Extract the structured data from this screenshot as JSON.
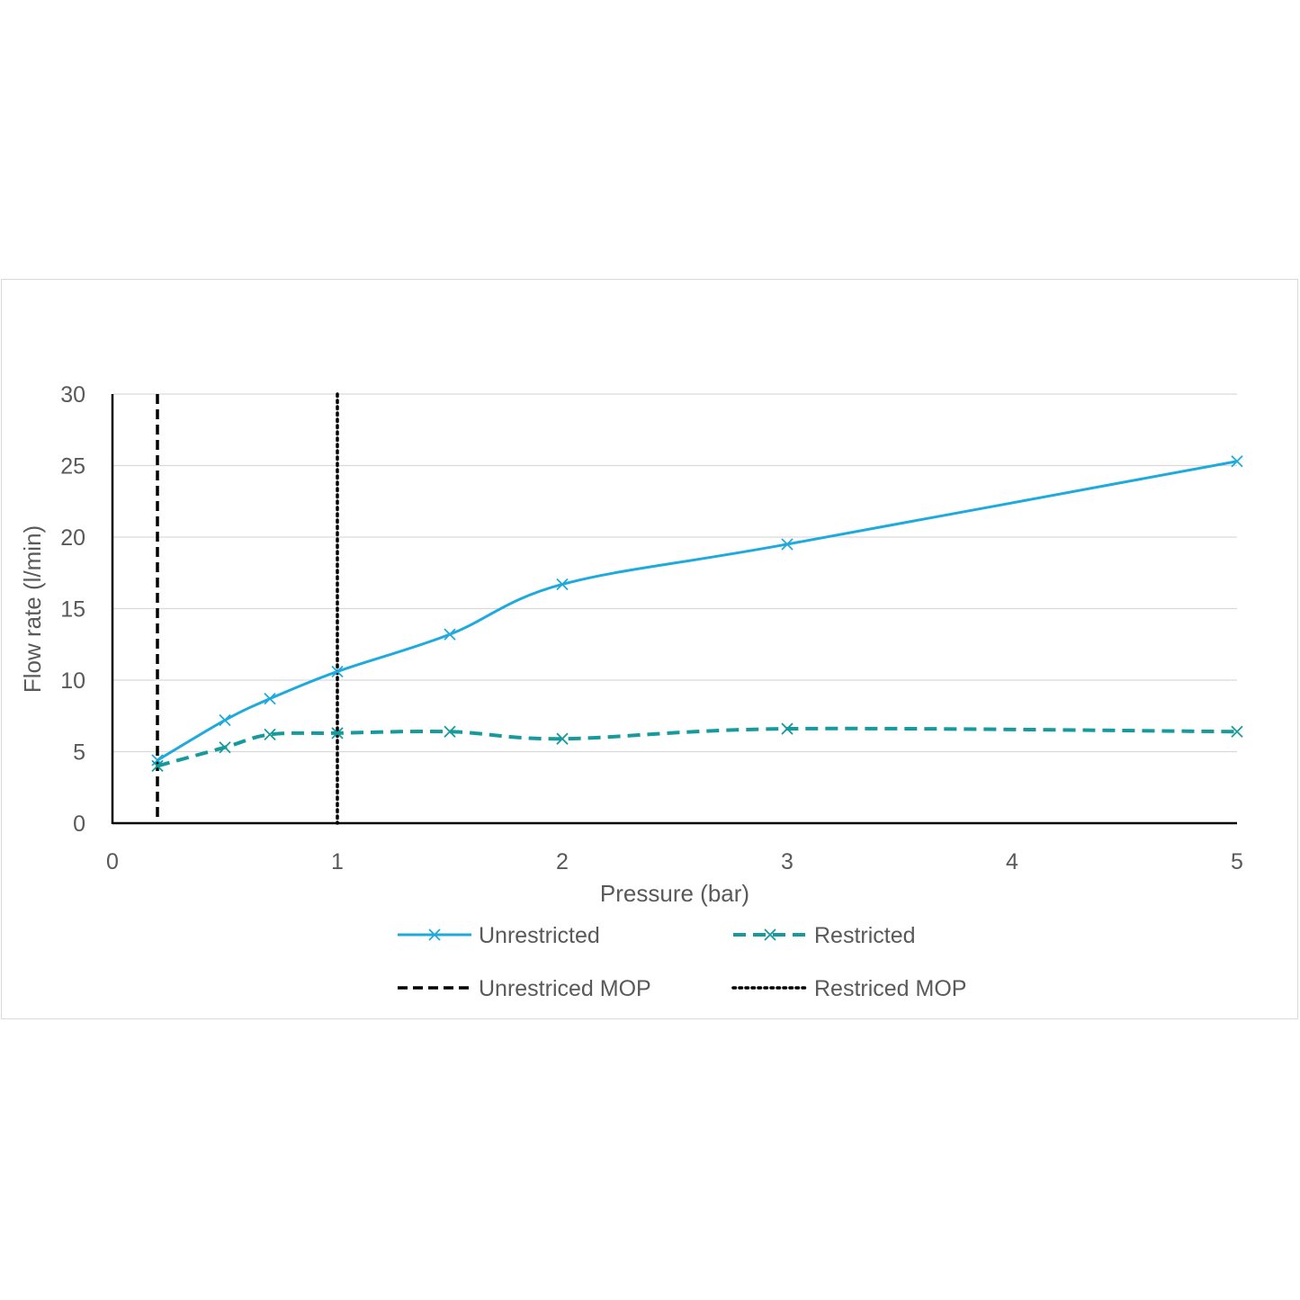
{
  "chart_data": {
    "type": "line",
    "title": "",
    "xlabel": "Pressure (bar)",
    "ylabel": "Flow rate (l/min)",
    "xlim": [
      0,
      5
    ],
    "ylim": [
      0,
      30
    ],
    "x_ticks": [
      "0",
      "1",
      "2",
      "3",
      "4",
      "5"
    ],
    "y_ticks": [
      "0",
      "5",
      "10",
      "15",
      "20",
      "25",
      "30"
    ],
    "grid": true,
    "legend_position": "bottom",
    "series": [
      {
        "name": "Unrestricted",
        "color": "#1eaadc",
        "style": "solid",
        "marker": "x",
        "x": [
          0.2,
          0.5,
          0.7,
          1.0,
          1.5,
          2.0,
          3.0,
          5.0
        ],
        "y": [
          4.4,
          7.2,
          8.7,
          10.6,
          13.2,
          16.7,
          19.5,
          25.3
        ]
      },
      {
        "name": "Restricted",
        "color": "#169a9c",
        "style": "dashed",
        "marker": "x",
        "x": [
          0.2,
          0.5,
          0.7,
          1.0,
          1.5,
          2.0,
          3.0,
          5.0
        ],
        "y": [
          4.0,
          5.3,
          6.2,
          6.3,
          6.4,
          5.9,
          6.6,
          6.4
        ]
      }
    ],
    "reference_lines": [
      {
        "name": "Unrestriced MOP",
        "x": 0.2,
        "color": "#000000",
        "style": "dashed"
      },
      {
        "name": "Restriced MOP",
        "x": 1.0,
        "color": "#000000",
        "style": "dotted"
      }
    ]
  }
}
